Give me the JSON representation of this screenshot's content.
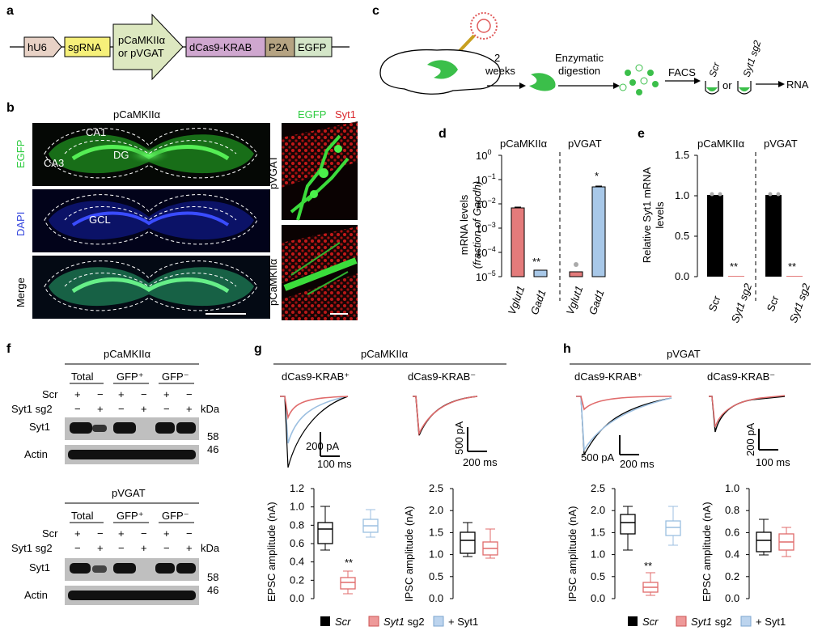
{
  "panels": {
    "a": "a",
    "b": "b",
    "c": "c",
    "d": "d",
    "e": "e",
    "f": "f",
    "g": "g",
    "h": "h"
  },
  "a": {
    "hU6": "hU6",
    "sgRNA": "sgRNA",
    "promoter1": "pCaMKIIα",
    "promoter2": "or pVGAT",
    "dcas9": "dCas9-KRAB",
    "p2a": "P2A",
    "egfp": "EGFP"
  },
  "c": {
    "time1": "2",
    "time2": "weeks",
    "digest1": "Enzymatic",
    "digest2": "digestion",
    "facs": "FACS",
    "scr": "Scr",
    "or": "or",
    "sg2": "Syt1 sg2",
    "rna": "RNA"
  },
  "b": {
    "title": "pCaMKIIα",
    "row1": "EGFP",
    "row2": "DAPI",
    "row3": "Merge",
    "ca1": "CA1",
    "ca3": "CA3",
    "dg": "DG",
    "gcl": "GCL",
    "right_egfp": "EGFP",
    "right_syt1": "Syt1",
    "pvgat": "pVGAT",
    "pcamk": "pCaMKIIα"
  },
  "d": {
    "h1": "pCaMKIIα",
    "h2": "pVGAT",
    "ylabel1": "mRNA levels",
    "ylabel2": "(fraction of Gapdh)",
    "sig1": "**",
    "sig2": "*",
    "yticks": [
      "10",
      "10",
      "10",
      "10",
      "10",
      "10"
    ],
    "yexp": [
      "0",
      "−1",
      "−2",
      "−3",
      "−4",
      "−5"
    ],
    "xlabels": [
      "Vglut1",
      "Gad1",
      "Vglut1",
      "Gad1"
    ]
  },
  "e": {
    "h1": "pCaMKIIα",
    "h2": "pVGAT",
    "ylabel1": "Relative Syt1 mRNA",
    "ylabel2": "levels",
    "sig1": "**",
    "sig2": "**",
    "yticks": [
      "1.5",
      "1.0",
      "0.5",
      "0.0"
    ],
    "xlabels": [
      "Scr",
      "Syt1 sg2",
      "Scr",
      "Syt1 sg2"
    ]
  },
  "f": {
    "top_title": "pCaMKIIα",
    "bottom_title": "pVGAT",
    "cols": [
      "Total",
      "GFP⁺",
      "GFP⁻"
    ],
    "scr": "Scr",
    "sg2": "Syt1 sg2",
    "kda": "kDa",
    "plus": "+",
    "minus": "−",
    "syt1": "Syt1",
    "actin": "Actin",
    "m58": "58",
    "m46": "46"
  },
  "g": {
    "title": "pCaMKIIα",
    "left": "dCas9-KRAB⁺",
    "right": "dCas9-KRAB⁻",
    "sb1y": "200 pA",
    "sb1x": "100 ms",
    "sb2y": "500 pA",
    "sb2x": "200 ms",
    "ylab1": "EPSC amplitude (nA)",
    "ylab2": "IPSC amplitude (nA)",
    "sig": "**",
    "ticks1": [
      "1.2",
      "1.0",
      "0.8",
      "0.6",
      "0.4",
      "0.2",
      "0.0"
    ],
    "ticks2": [
      "2.5",
      "2.0",
      "1.5",
      "1.0",
      "0.5",
      "0.0"
    ]
  },
  "h": {
    "title": "pVGAT",
    "left": "dCas9-KRAB⁺",
    "right": "dCas9-KRAB⁻",
    "sb1y": "500 pA",
    "sb1x": "200 ms",
    "sb2y": "200 pA",
    "sb2x": "100 ms",
    "ylab1": "IPSC amplitude (nA)",
    "ylab2": "EPSC amplitude (nA)",
    "sig": "**",
    "ticks1": [
      "2.5",
      "2.0",
      "1.5",
      "1.0",
      "0.5",
      "0.0"
    ],
    "ticks2": [
      "1.0",
      "0.8",
      "0.6",
      "0.4",
      "0.2",
      "0.0"
    ]
  },
  "legend": {
    "scr": "Scr",
    "sg2": "Syt1 sg2",
    "rescue": "+ Syt1"
  },
  "colors": {
    "scr": "#000000",
    "sg2": "#e06b6b",
    "rescue": "#9cbfe0",
    "green": "#2ecc40",
    "red": "#d9262b",
    "blue": "#2233cc"
  }
}
